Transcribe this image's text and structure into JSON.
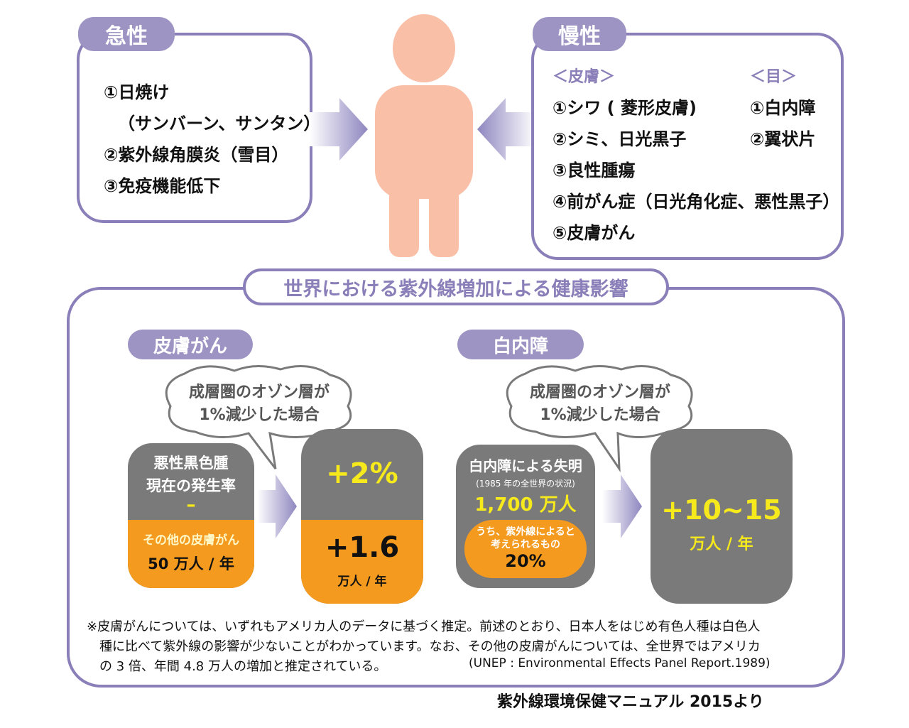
{
  "acute": {
    "tab": "急性",
    "items": [
      "①日焼け",
      "（サンバーン、サンタン）",
      "②紫外線角膜炎（雪目）",
      "③免疫機能低下"
    ]
  },
  "chronic": {
    "tab": "慢性",
    "skin_header": "＜皮膚＞",
    "eye_header": "＜目＞",
    "skin_items": [
      "①シワ ( 菱形皮膚)",
      "②シミ、日光黒子",
      "③良性腫瘍",
      "④前がん症（日光角化症、悪性黒子）",
      "⑤皮膚がん"
    ],
    "eye_items": [
      "①白内障",
      "②翼状片"
    ]
  },
  "global": {
    "title": "世界における紫外線増加による健康影響",
    "skin": {
      "tab": "皮膚がん",
      "bubble": [
        "成層圏のオゾン層が",
        "1%減少した場合"
      ],
      "left_top": [
        "悪性黒色腫",
        "現在の発生率",
        "–"
      ],
      "left_bottom": [
        "その他の皮膚がん",
        "50 万人 / 年"
      ],
      "right_top": "+2%",
      "right_bottom_value": "+1.6",
      "right_bottom_unit": "万人 / 年"
    },
    "cataract": {
      "tab": "白内障",
      "bubble": [
        "成層圏のオゾン層が",
        "1%減少した場合"
      ],
      "left_title": "白内障による失明",
      "left_sub": "(1985 年の全世界の状況)",
      "left_value": "1,700 万人",
      "left_pill": [
        "うち、紫外線によると",
        "考えられるもの",
        "20%"
      ],
      "right_value": "+10~15",
      "right_unit": "万人 / 年"
    },
    "note_lines": [
      "※皮膚がんについては、いずれもアメリカ人のデータに基づく推定。前述のとおり、日本人をはじめ有色人種は白色人",
      "種に比べて紫外線の影響が少ないことがわかっています。なお、その他の皮膚がんについては、全世界ではアメリカ",
      "の 3 倍、年間 4.8 万人の増加と推定されている。"
    ],
    "source": "(UNEP : Environmental Effects Panel Report.1989)"
  },
  "footer": "紫外線環境保健マニュアル 2015より",
  "colors": {
    "frame": "#8a7fb8",
    "tab": "#9d94c4",
    "gray": "#7a7a7a",
    "orange": "#f39a1f",
    "yellow": "#f7ea1c",
    "body": "#f9bfa7"
  }
}
